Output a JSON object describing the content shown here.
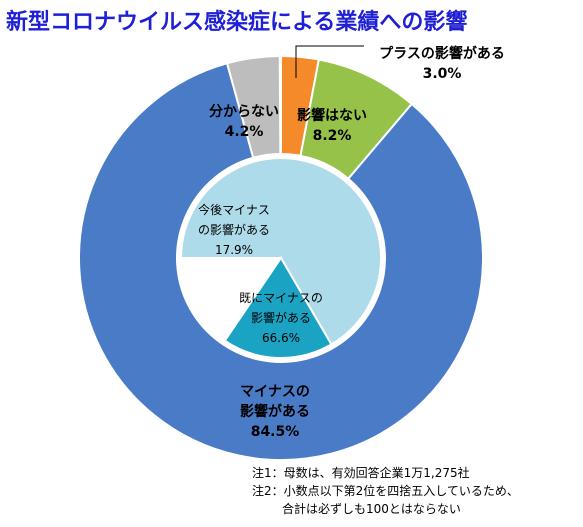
{
  "title": "新型コロナウイルス感染症による業績への影響",
  "chart_data": [
    {
      "type": "pie",
      "ring": "outer",
      "slices": [
        {
          "label_lines": [
            "プラスの影響がある"
          ],
          "value_text": "3.0%",
          "value": 3.0,
          "color": "#f58a2a"
        },
        {
          "label_lines": [
            "影響はない"
          ],
          "value_text": "8.2%",
          "value": 8.2,
          "color": "#96c24a"
        },
        {
          "label_lines": [
            "マイナスの",
            "影響がある"
          ],
          "value_text": "84.5%",
          "value": 84.5,
          "color": "#4a7bc6"
        },
        {
          "label_lines": [
            "分からない"
          ],
          "value_text": "4.2%",
          "value": 4.2,
          "color": "#bdbdbd"
        }
      ]
    },
    {
      "type": "pie",
      "ring": "inner",
      "slices": [
        {
          "label_lines": [
            "既にマイナスの",
            "影響がある"
          ],
          "value_text": "66.6%",
          "value": 66.6,
          "color": "#aedbea"
        },
        {
          "label_lines": [
            "今後マイナス",
            "の影響がある"
          ],
          "value_text": "17.9%",
          "value": 17.9,
          "color": "#1aa3c3"
        }
      ]
    }
  ],
  "notes": [
    "注1：母数は、有効回答企業1万1,275社",
    "注2：小数点以下第2位を四捨五入しているため、",
    "合計は必ずしも100とはならない"
  ]
}
